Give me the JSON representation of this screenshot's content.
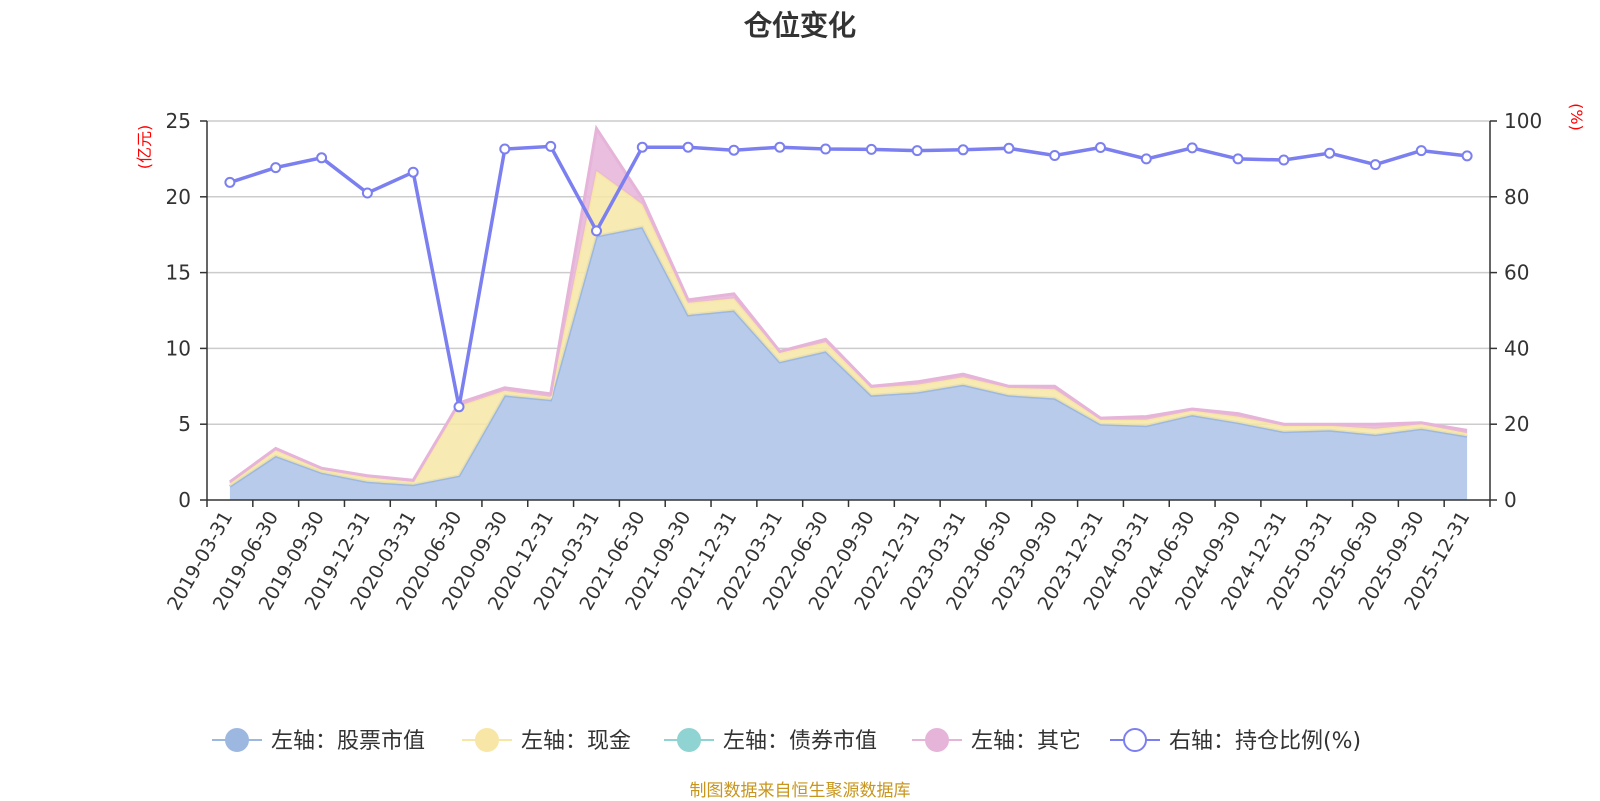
{
  "colors": {
    "stock": "#9db8e0",
    "stock_fill": "#b8cbea",
    "cash": "#f7e6a6",
    "bond": "#8fd3d3",
    "other": "#e6b3d9",
    "ratio": "#7b7ff0",
    "axis_unit": "#ff0000",
    "source": "#c8961e"
  },
  "chart_data": {
    "type": "area",
    "title": "仓位变化",
    "left_axis": {
      "unit_label": "(亿元)",
      "ylim": [
        0,
        25
      ],
      "ticks": [
        0,
        5,
        10,
        15,
        20,
        25
      ]
    },
    "right_axis": {
      "unit_label": "(%)",
      "ylim": [
        0,
        100
      ],
      "ticks": [
        0,
        20,
        40,
        60,
        80,
        100
      ]
    },
    "grid": true,
    "legend_position": "bottom",
    "categories": [
      "2019-03-31",
      "2019-06-30",
      "2019-09-30",
      "2019-12-31",
      "2020-03-31",
      "2020-06-30",
      "2020-09-30",
      "2020-12-31",
      "2021-03-31",
      "2021-06-30",
      "2021-09-30",
      "2021-12-31",
      "2022-03-31",
      "2022-06-30",
      "2022-09-30",
      "2022-12-31",
      "2023-03-31",
      "2023-06-30",
      "2023-09-30",
      "2023-12-31",
      "2024-03-31",
      "2024-06-30",
      "2024-09-30",
      "2024-12-31",
      "2025-03-31",
      "2025-06-30",
      "2025-09-30",
      "2025-12-31"
    ],
    "series": [
      {
        "name": "左轴：股票市值",
        "axis": "left",
        "stack": true,
        "values": [
          0.9,
          2.9,
          1.8,
          1.2,
          1.0,
          1.6,
          6.9,
          6.6,
          17.4,
          18.0,
          12.2,
          12.5,
          9.1,
          9.8,
          6.9,
          7.1,
          7.6,
          6.9,
          6.7,
          5.0,
          4.9,
          5.6,
          5.1,
          4.5,
          4.6,
          4.3,
          4.7,
          4.2
        ]
      },
      {
        "name": "左轴：现金",
        "axis": "left",
        "stack": true,
        "values": [
          0.2,
          0.4,
          0.2,
          0.3,
          0.2,
          4.6,
          0.3,
          0.2,
          4.3,
          1.5,
          0.8,
          0.8,
          0.6,
          0.6,
          0.5,
          0.5,
          0.5,
          0.5,
          0.6,
          0.3,
          0.4,
          0.3,
          0.4,
          0.4,
          0.3,
          0.4,
          0.3,
          0.2
        ]
      },
      {
        "name": "左轴：债券市值",
        "axis": "left",
        "stack": true,
        "values": [
          0,
          0,
          0,
          0,
          0,
          0,
          0,
          0,
          0,
          0,
          0,
          0,
          0,
          0,
          0,
          0,
          0,
          0,
          0,
          0,
          0,
          0,
          0,
          0,
          0,
          0,
          0,
          0
        ]
      },
      {
        "name": "左轴：其它",
        "axis": "left",
        "stack": true,
        "values": [
          0.1,
          0.1,
          0.1,
          0.1,
          0.1,
          0.2,
          0.2,
          0.2,
          2.8,
          0.4,
          0.2,
          0.3,
          0.1,
          0.2,
          0.1,
          0.2,
          0.2,
          0.1,
          0.2,
          0.1,
          0.2,
          0.1,
          0.2,
          0.1,
          0.1,
          0.3,
          0.1,
          0.2
        ]
      },
      {
        "name": "右轴：持仓比例(%)",
        "axis": "right",
        "stack": false,
        "values": [
          83.8,
          87.7,
          90.3,
          81.0,
          86.5,
          24.6,
          92.6,
          93.3,
          71.0,
          93.1,
          93.1,
          92.3,
          93.1,
          92.6,
          92.5,
          92.2,
          92.4,
          92.8,
          90.9,
          93.0,
          90.0,
          92.9,
          90.0,
          89.7,
          91.5,
          88.5,
          92.2,
          90.8
        ]
      }
    ]
  },
  "footer": {
    "source_note": "制图数据来自恒生聚源数据库"
  }
}
